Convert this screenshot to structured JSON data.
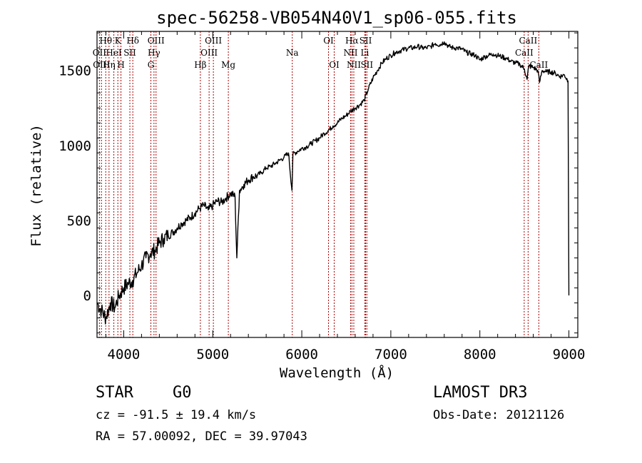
{
  "chart_data": {
    "type": "line",
    "title": "spec-56258-VB054N40V1_sp06-055.fits",
    "xlabel": "Wavelength (Å)",
    "ylabel": "Flux (relative)",
    "xlim": [
      3700,
      9100
    ],
    "ylim": [
      -280,
      1760
    ],
    "xticks": [
      4000,
      5000,
      6000,
      7000,
      8000,
      9000
    ],
    "yticks": [
      0,
      500,
      1000,
      1500
    ],
    "series": [
      {
        "name": "flux",
        "color": "#000000",
        "x": [
          3700,
          3750,
          3800,
          3850,
          3900,
          3950,
          4000,
          4050,
          4100,
          4150,
          4200,
          4250,
          4300,
          4350,
          4400,
          4450,
          4500,
          4550,
          4600,
          4650,
          4700,
          4750,
          4800,
          4850,
          4900,
          4950,
          5000,
          5050,
          5100,
          5150,
          5200,
          5250,
          5270,
          5300,
          5350,
          5400,
          5450,
          5500,
          5550,
          5600,
          5650,
          5700,
          5750,
          5800,
          5850,
          5890,
          5900,
          5950,
          6000,
          6050,
          6100,
          6150,
          6200,
          6250,
          6300,
          6350,
          6400,
          6450,
          6500,
          6550,
          6600,
          6650,
          6700,
          6750,
          6800,
          6850,
          6900,
          6950,
          7000,
          7050,
          7100,
          7150,
          7200,
          7250,
          7300,
          7350,
          7400,
          7450,
          7500,
          7550,
          7600,
          7650,
          7700,
          7750,
          7800,
          7850,
          7900,
          7950,
          8000,
          8050,
          8100,
          8150,
          8200,
          8250,
          8300,
          8350,
          8400,
          8450,
          8500,
          8530,
          8550,
          8600,
          8650,
          8670,
          8700,
          8750,
          8800,
          8850,
          8900,
          8950,
          8990,
          9000
        ],
        "y": [
          -50,
          -100,
          -150,
          -50,
          -80,
          0,
          50,
          80,
          100,
          150,
          200,
          250,
          280,
          300,
          350,
          380,
          400,
          420,
          450,
          480,
          500,
          520,
          550,
          580,
          600,
          570,
          600,
          630,
          620,
          650,
          680,
          660,
          250,
          700,
          740,
          770,
          790,
          800,
          820,
          850,
          860,
          880,
          900,
          920,
          950,
          700,
          940,
          960,
          980,
          990,
          1010,
          1030,
          1050,
          1080,
          1100,
          1130,
          1150,
          1180,
          1200,
          1230,
          1250,
          1270,
          1300,
          1380,
          1450,
          1500,
          1550,
          1580,
          1600,
          1620,
          1630,
          1640,
          1650,
          1650,
          1660,
          1650,
          1650,
          1660,
          1680,
          1670,
          1690,
          1660,
          1650,
          1650,
          1640,
          1620,
          1610,
          1600,
          1570,
          1590,
          1600,
          1610,
          1600,
          1590,
          1580,
          1560,
          1550,
          1540,
          1510,
          1440,
          1530,
          1520,
          1500,
          1420,
          1500,
          1490,
          1490,
          1480,
          1460,
          1470,
          1430,
          0
        ]
      }
    ],
    "spectral_lines": [
      {
        "label": "Hθ",
        "x": 3798,
        "row": 0
      },
      {
        "label": "OII",
        "x": 3727,
        "row": 1
      },
      {
        "label": "OIII",
        "x": 3750,
        "row": 2
      },
      {
        "label": "Hη",
        "x": 3835,
        "row": 2
      },
      {
        "label": "HeI",
        "x": 3889,
        "row": 1
      },
      {
        "label": "K",
        "x": 3934,
        "row": 0
      },
      {
        "label": "H",
        "x": 3969,
        "row": 2
      },
      {
        "label": "SII",
        "x": 4069,
        "row": 1
      },
      {
        "label": "Hδ",
        "x": 4102,
        "row": 0
      },
      {
        "label": "OIII",
        "x": 4363,
        "row": 0
      },
      {
        "label": "Hγ",
        "x": 4340,
        "row": 1
      },
      {
        "label": "G",
        "x": 4305,
        "row": 2
      },
      {
        "label": "Hβ",
        "x": 4861,
        "row": 2
      },
      {
        "label": "OIII",
        "x": 5007,
        "row": 0
      },
      {
        "label": "OIII",
        "x": 4959,
        "row": 1
      },
      {
        "label": "Mg",
        "x": 5175,
        "row": 2
      },
      {
        "label": "Na",
        "x": 5893,
        "row": 1
      },
      {
        "label": "OI",
        "x": 6300,
        "row": 0
      },
      {
        "label": "OI",
        "x": 6364,
        "row": 2
      },
      {
        "label": "Hα",
        "x": 6563,
        "row": 0
      },
      {
        "label": "NII",
        "x": 6548,
        "row": 1
      },
      {
        "label": "NII",
        "x": 6584,
        "row": 2
      },
      {
        "label": "SII",
        "x": 6717,
        "row": 0
      },
      {
        "label": "Li",
        "x": 6708,
        "row": 1
      },
      {
        "label": "SII",
        "x": 6731,
        "row": 2
      },
      {
        "label": "CaII",
        "x": 8542,
        "row": 0
      },
      {
        "label": "CaII",
        "x": 8498,
        "row": 1
      },
      {
        "label": "CaII",
        "x": 8662,
        "row": 2
      }
    ],
    "line_marker_color": "#aa0000"
  },
  "info": {
    "object_class": "STAR",
    "subclass": "G0",
    "survey": "LAMOST DR3",
    "redshift": "cz = -91.5 ± 19.4 km/s",
    "obs_date": "Obs-Date: 20121126",
    "coords": "RA =  57.00092, DEC =  39.97043"
  }
}
